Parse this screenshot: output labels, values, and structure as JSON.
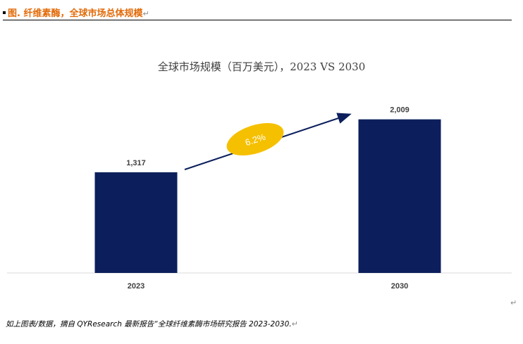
{
  "header": {
    "figure_title": "图.  纤维素酶，全球市场总体规模",
    "paragraph_mark": "↵"
  },
  "chart_data": {
    "type": "bar",
    "title": "全球市场规模（百万美元），2023 VS 2030",
    "categories": [
      "2023",
      "2030"
    ],
    "values": [
      1317,
      2009
    ],
    "value_labels": [
      "1,317",
      "2,009"
    ],
    "growth_label": "6.2%",
    "xlabel": "",
    "ylabel": "",
    "ylim": [
      0,
      2300
    ],
    "grid": false,
    "legend": "none",
    "bar_color": "#0c1f5c",
    "growth_badge_color": "#f5c000",
    "arrow_color": "#0c1f5c"
  },
  "caption": {
    "text": "如上图表/数据，摘自 QYResearch 最新报告“全球纤维素酶市场研究报告 2023-2030.",
    "paragraph_mark": "↵"
  },
  "stray_mark": "↵"
}
